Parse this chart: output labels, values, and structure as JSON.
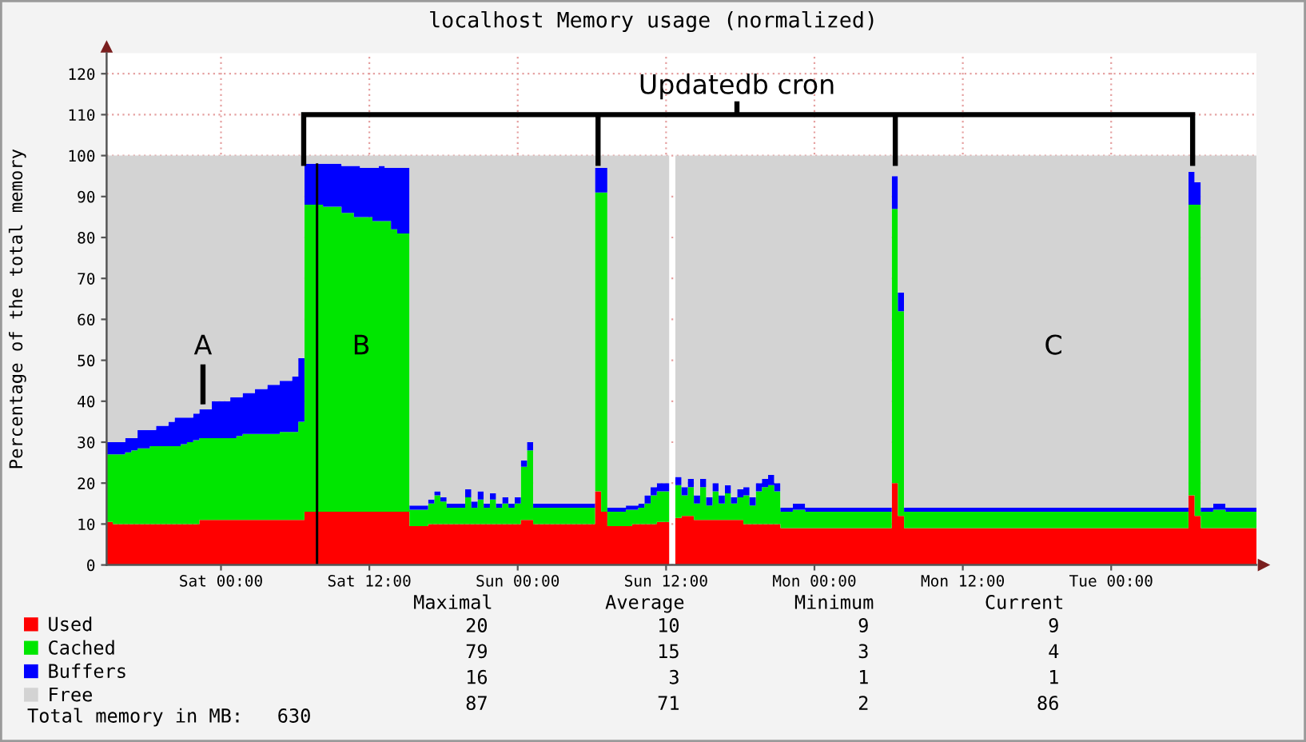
{
  "chart_data": {
    "type": "area",
    "stacked": true,
    "title": "localhost Memory usage (normalized)",
    "ylabel": "Percentage of the total memory",
    "categories": [
      null,
      null,
      null,
      null,
      null,
      null,
      null,
      null,
      null,
      null,
      null,
      null,
      null,
      null,
      null,
      null,
      null,
      null,
      "Sat 00:00",
      null,
      null,
      null,
      null,
      null,
      null,
      null,
      null,
      null,
      null,
      null,
      null,
      null,
      null,
      null,
      null,
      null,
      null,
      null,
      null,
      null,
      null,
      null,
      "Sat 12:00",
      null,
      null,
      null,
      null,
      null,
      null,
      null,
      null,
      null,
      null,
      null,
      null,
      null,
      null,
      null,
      null,
      null,
      null,
      null,
      null,
      null,
      null,
      null,
      "Sun 00:00",
      null,
      null,
      null,
      null,
      null,
      null,
      null,
      null,
      null,
      null,
      null,
      null,
      null,
      null,
      null,
      null,
      null,
      null,
      null,
      null,
      null,
      null,
      null,
      "Sun 12:00",
      null,
      null,
      null,
      null,
      null,
      null,
      null,
      null,
      null,
      null,
      null,
      null,
      null,
      null,
      null,
      null,
      null,
      null,
      null,
      null,
      null,
      null,
      null,
      "Mon 00:00",
      null,
      null,
      null,
      null,
      null,
      null,
      null,
      null,
      null,
      null,
      null,
      null,
      null,
      null,
      null,
      null,
      null,
      null,
      null,
      null,
      null,
      null,
      null,
      "Mon 12:00",
      null,
      null,
      null,
      null,
      null,
      null,
      null,
      null,
      null,
      null,
      null,
      null,
      null,
      null,
      null,
      null,
      null,
      null,
      null,
      null,
      null,
      null,
      null,
      "Tue 00:00",
      null,
      null,
      null,
      null,
      null,
      null,
      null,
      null,
      null,
      null,
      null,
      null,
      null,
      null,
      null,
      null,
      null,
      null,
      null,
      null,
      null,
      null,
      null
    ],
    "series": [
      {
        "name": "Used",
        "color": "#ff0000",
        "values": [
          10.5,
          10,
          10,
          10,
          10,
          10,
          10,
          10,
          10,
          10,
          10,
          10,
          10,
          10,
          10,
          11,
          11,
          11,
          11,
          11,
          11,
          11,
          11,
          11,
          11,
          11,
          11,
          11,
          11,
          11,
          11,
          11,
          13,
          13,
          13,
          13,
          13,
          13,
          13,
          13,
          13,
          13,
          13,
          13,
          13,
          13,
          13,
          13,
          13,
          9.5,
          9.5,
          9.5,
          10,
          10,
          10,
          10,
          10,
          10,
          10,
          10,
          10,
          10,
          10,
          10,
          10,
          10,
          10,
          11,
          11,
          10,
          10,
          10,
          10,
          10,
          10,
          10,
          10,
          10,
          10,
          18,
          13,
          9.5,
          9.5,
          9.5,
          9.5,
          10,
          10,
          10,
          10,
          10.5,
          10.5,
          null,
          11.5,
          12,
          12,
          11,
          11,
          11,
          11,
          11,
          11,
          11,
          11,
          10,
          10,
          10,
          10,
          10,
          10,
          9,
          9,
          9,
          9,
          9,
          9,
          9,
          9,
          9,
          9,
          9,
          9,
          9,
          9,
          9,
          9,
          9,
          9,
          20,
          12,
          9,
          9,
          9,
          9,
          9,
          9,
          9,
          9,
          9,
          9,
          9,
          9,
          9,
          9,
          9,
          9,
          9,
          9,
          9,
          9,
          9,
          9,
          9,
          9,
          9,
          9,
          9,
          9,
          9,
          9,
          9,
          9,
          9,
          9,
          9,
          9,
          9,
          9,
          9,
          9,
          9,
          9,
          9,
          9,
          9,
          9,
          17,
          12,
          9,
          9,
          9,
          9,
          9,
          9,
          9,
          9,
          9
        ]
      },
      {
        "name": "Cached",
        "color": "#00e600",
        "values": [
          16.5,
          17,
          17,
          17.5,
          18,
          18.5,
          18.5,
          19,
          19,
          19,
          19,
          19,
          19.5,
          20,
          20.5,
          20,
          20,
          20,
          20,
          20,
          20,
          20.5,
          21,
          21,
          21,
          21,
          21,
          21,
          21.5,
          21.5,
          21.5,
          24,
          75,
          75,
          75,
          74.5,
          74.5,
          74.5,
          73,
          73,
          72,
          72,
          72,
          71,
          71,
          71,
          69,
          68,
          68,
          4,
          4,
          4,
          5,
          7,
          5.5,
          4,
          4,
          4,
          6.5,
          4,
          6,
          4,
          6,
          4,
          5,
          4,
          5,
          13,
          17,
          4,
          4,
          4,
          4,
          4,
          4,
          4,
          4,
          4,
          4,
          73,
          78,
          3.5,
          3.5,
          3.5,
          4,
          3.5,
          4,
          5,
          7,
          7.5,
          7.5,
          null,
          8,
          5,
          7,
          4,
          8,
          3.5,
          7,
          4,
          6.5,
          4,
          5.5,
          7,
          4.5,
          8,
          9,
          9.5,
          8,
          4,
          4,
          4.5,
          4.5,
          4,
          4,
          4,
          4,
          4,
          4,
          4,
          4,
          4,
          4,
          4,
          4,
          4,
          4,
          67,
          50,
          4,
          4,
          4,
          4,
          4,
          4,
          4,
          4,
          4,
          4,
          4,
          4,
          4,
          4,
          4,
          4,
          4,
          4,
          4,
          4,
          4,
          4,
          4,
          4,
          4,
          4,
          4,
          4,
          4,
          4,
          4,
          4,
          4,
          4,
          4,
          4,
          4,
          4,
          4,
          4,
          4,
          4,
          4,
          4,
          4,
          4,
          71,
          76,
          4,
          4,
          4.5,
          4.5,
          4,
          4,
          4,
          4,
          4
        ]
      },
      {
        "name": "Buffers",
        "color": "#0000ff",
        "values": [
          3,
          3,
          3,
          3.5,
          3,
          4.5,
          4.5,
          4,
          5,
          5,
          6,
          7,
          6.5,
          6,
          6.5,
          7,
          7,
          9,
          9,
          9,
          10,
          9.5,
          10,
          10,
          11,
          11,
          12,
          12,
          12.5,
          12.5,
          13.5,
          15.5,
          10,
          10,
          10,
          10.5,
          10.5,
          10.5,
          11.5,
          11.5,
          12.5,
          12,
          12,
          13,
          13.5,
          13,
          15,
          16,
          16,
          1,
          1,
          1,
          1,
          1,
          1,
          1,
          1,
          1,
          2,
          1.5,
          2,
          1,
          1.5,
          1,
          1.5,
          1,
          1.5,
          1.5,
          2,
          1,
          1,
          1,
          1,
          1,
          1,
          1,
          1,
          1,
          1,
          6,
          6,
          1,
          1,
          1,
          1,
          1,
          1,
          2,
          2,
          2,
          2,
          null,
          2,
          2,
          2,
          2,
          2,
          2,
          2,
          2,
          2,
          1.5,
          2,
          2,
          2,
          2,
          2,
          2.5,
          2,
          1,
          1,
          1.5,
          1.5,
          1,
          1,
          1,
          1,
          1,
          1,
          1,
          1,
          1,
          1,
          1,
          1,
          1,
          1,
          8,
          4.5,
          1,
          1,
          1,
          1,
          1,
          1,
          1,
          1,
          1,
          1,
          1,
          1,
          1,
          1,
          1,
          1,
          1,
          1,
          1,
          1,
          1,
          1,
          1,
          1,
          1,
          1,
          1,
          1,
          1,
          1,
          1,
          1,
          1,
          1,
          1,
          1,
          1,
          1,
          1,
          1,
          1,
          1,
          1,
          1,
          1,
          1,
          8,
          5.5,
          1,
          1,
          1.5,
          1.5,
          1,
          1,
          1,
          1,
          1
        ]
      },
      {
        "name": "Free",
        "color": "#d3d3d3",
        "values": [
          70,
          70,
          70,
          69,
          69,
          67,
          67,
          67,
          66,
          66,
          65,
          64,
          64,
          64,
          63,
          62,
          62,
          60,
          60,
          60,
          59,
          59,
          58,
          58,
          57,
          57,
          56,
          56,
          55,
          55,
          54,
          49.5,
          2,
          2,
          2,
          2,
          2,
          2,
          2.5,
          2.5,
          2.5,
          3,
          3,
          3,
          2.5,
          3,
          3,
          3,
          3,
          85.5,
          85.5,
          85.5,
          84,
          82,
          83.5,
          85,
          85,
          85,
          81.5,
          84.5,
          82,
          85,
          82.5,
          85,
          83.5,
          85,
          83.5,
          74.5,
          70,
          85,
          85,
          85,
          85,
          85,
          85,
          85,
          85,
          85,
          85,
          3,
          3,
          86,
          86,
          86,
          85.5,
          85.5,
          85,
          83,
          81,
          80,
          80,
          null,
          78.5,
          81,
          79,
          83,
          79,
          83.5,
          80,
          83,
          80.5,
          83.5,
          81.5,
          81,
          83.5,
          80,
          79,
          78,
          80,
          86,
          86,
          85,
          85,
          86,
          86,
          86,
          86,
          86,
          86,
          86,
          86,
          86,
          86,
          86,
          86,
          86,
          86,
          5,
          33.5,
          86,
          86,
          86,
          86,
          86,
          86,
          86,
          86,
          86,
          86,
          86,
          86,
          86,
          86,
          86,
          86,
          86,
          86,
          86,
          86,
          86,
          86,
          86,
          86,
          86,
          86,
          86,
          86,
          86,
          86,
          86,
          86,
          86,
          86,
          86,
          86,
          86,
          86,
          86,
          86,
          86,
          86,
          86,
          86,
          86,
          86,
          4,
          6.5,
          86,
          86,
          85,
          85,
          86,
          86,
          86,
          86,
          86
        ]
      }
    ],
    "ylim": [
      0,
      125
    ],
    "yticks": [
      0,
      10,
      20,
      30,
      40,
      50,
      60,
      70,
      80,
      90,
      100,
      110,
      120
    ],
    "grid": true,
    "legend": "bottom left",
    "annotations": [
      "Updatedb cron",
      "A",
      "B",
      "C",
      "Maximal",
      "Average",
      "Minimum",
      "Current",
      "20",
      "10",
      "9",
      "9",
      "79",
      "15",
      "3",
      "4",
      "16",
      "3",
      "1",
      "1",
      "87",
      "71",
      "2",
      "86",
      "Total memory in MB:   630"
    ]
  }
}
